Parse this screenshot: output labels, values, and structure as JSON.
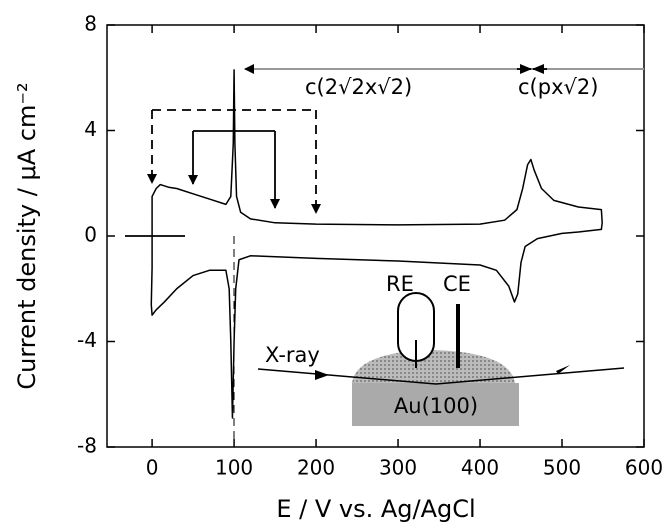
{
  "chart_data": {
    "type": "line",
    "xlabel": "E / V vs. Ag/AgCl",
    "ylabel": "Current density / μA cm⁻²",
    "xlim": [
      -55,
      600
    ],
    "ylim": [
      -8,
      8
    ],
    "xticks": [
      0,
      100,
      200,
      300,
      400,
      500,
      600
    ],
    "yticks": [
      -8,
      -4,
      0,
      4,
      8
    ],
    "series": [
      {
        "color": "#000000",
        "x": [
          0,
          0,
          5,
          10,
          20,
          30,
          50,
          70,
          90,
          96,
          99,
          100,
          101,
          103,
          108,
          120,
          150,
          200,
          300,
          400,
          430,
          445,
          452,
          458,
          462,
          466,
          475,
          490,
          520,
          548,
          549,
          548,
          520,
          500,
          470,
          455,
          450,
          446,
          442,
          435,
          420,
          400,
          300,
          200,
          120,
          106,
          102,
          100,
          98,
          96,
          94,
          90,
          70,
          50,
          30,
          15,
          5,
          0,
          -1,
          0
        ],
        "values": [
          -1.2,
          1.5,
          1.8,
          1.95,
          1.85,
          1.8,
          1.6,
          1.4,
          1.2,
          1.5,
          3.5,
          6.3,
          3.5,
          1.5,
          0.9,
          0.65,
          0.5,
          0.45,
          0.42,
          0.45,
          0.6,
          1.0,
          1.8,
          2.7,
          2.9,
          2.5,
          1.8,
          1.35,
          1.1,
          1.0,
          0.5,
          0.25,
          0.15,
          0.1,
          -0.1,
          -0.4,
          -1.0,
          -2.2,
          -2.5,
          -1.9,
          -1.3,
          -1.1,
          -0.95,
          -0.85,
          -0.75,
          -0.9,
          -2,
          -4,
          -6.9,
          -4,
          -2,
          -1.3,
          -1.3,
          -1.5,
          -2,
          -2.5,
          -2.8,
          -3.0,
          -2.6,
          -1.2
        ]
      }
    ],
    "annotations": [
      "c(2√2x√2)",
      "c(px√2)",
      "RE",
      "CE",
      "X-ray",
      "Au(100)"
    ]
  }
}
